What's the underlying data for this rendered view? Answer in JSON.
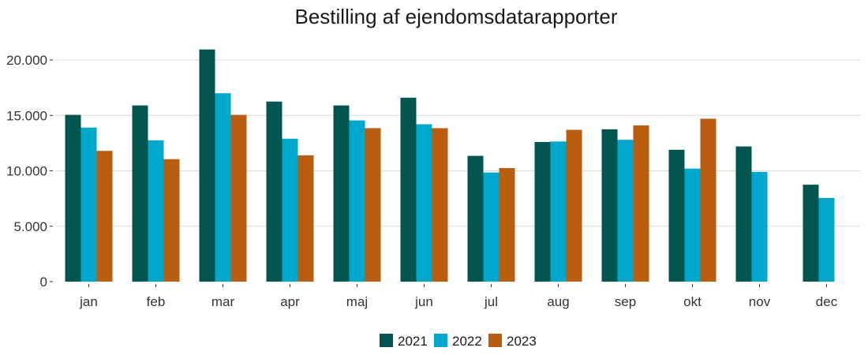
{
  "chart_data": {
    "type": "bar",
    "title": "Bestilling af ejendomsdatarapporter",
    "xlabel": "",
    "ylabel": "",
    "categories": [
      "jan",
      "feb",
      "mar",
      "apr",
      "maj",
      "jun",
      "jul",
      "aug",
      "sep",
      "okt",
      "nov",
      "dec"
    ],
    "series": [
      {
        "name": "2021",
        "color": "#02564f",
        "values": [
          15050,
          15900,
          20950,
          16250,
          15900,
          16600,
          11350,
          12600,
          13750,
          11900,
          12200,
          8750
        ]
      },
      {
        "name": "2022",
        "color": "#00a7cc",
        "values": [
          13900,
          12750,
          17000,
          12900,
          14550,
          14200,
          9850,
          12650,
          12800,
          10200,
          9900,
          7550
        ]
      },
      {
        "name": "2023",
        "color": "#b95d10",
        "values": [
          11800,
          11050,
          15050,
          11400,
          13850,
          13850,
          10250,
          13700,
          14100,
          14700,
          null,
          null
        ]
      }
    ],
    "ylim": [
      0,
      21500
    ],
    "yticks": [
      0,
      5000,
      10000,
      15000,
      20000
    ],
    "ytick_labels": [
      "0",
      "5.000",
      "10.000",
      "15.000",
      "20.000"
    ],
    "grid": true,
    "legend_position": "bottom"
  }
}
